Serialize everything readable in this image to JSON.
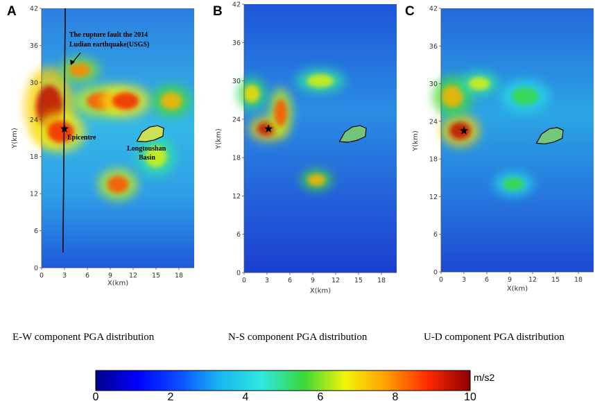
{
  "panels": [
    {
      "letter": "A",
      "caption": "E-W component PGA distribution",
      "ylabel": "Y(km)",
      "xlabel": "X(km)"
    },
    {
      "letter": "B",
      "caption": "N-S component PGA distribution",
      "ylabel": "Y(km)",
      "xlabel": "X(km)"
    },
    {
      "letter": "C",
      "caption": "U-D component PGA distribution",
      "ylabel": "Y(km)",
      "xlabel": "X(km)"
    }
  ],
  "annotations": {
    "fault_line1": "The rupture fault the 2014",
    "fault_line2": "Ludian earthquake(USGS)",
    "epicentre": "Epicentre",
    "basin_line1": "Longtoushan",
    "basin_line2": "Basin"
  },
  "colorbar": {
    "unit": "m/s2",
    "ticks": [
      "0",
      "2",
      "4",
      "6",
      "8",
      "10"
    ],
    "colors": [
      "#00008b",
      "#0000ff",
      "#0a4dff",
      "#19b8f0",
      "#2fe8e0",
      "#3ad83a",
      "#f4f40a",
      "#ff9d00",
      "#ff2800",
      "#8b0000"
    ]
  },
  "chart_data": [
    {
      "type": "heatmap",
      "title": "E-W component PGA distribution",
      "xlabel": "X(km)",
      "ylabel": "Y(km)",
      "xlim": [
        0,
        20
      ],
      "ylim": [
        0,
        42
      ],
      "xticks": [
        0,
        3,
        6,
        9,
        12,
        15,
        18
      ],
      "yticks": [
        0,
        6,
        12,
        18,
        24,
        30,
        36,
        42
      ],
      "value_range": [
        0,
        10
      ],
      "unit": "m/s2",
      "epicentre": {
        "x": 3,
        "y": 22.5
      },
      "fault_trace": [
        [
          2.8,
          2.5
        ],
        [
          3.1,
          42
        ]
      ],
      "basin_outline": [
        [
          12.5,
          20.5
        ],
        [
          13.2,
          22
        ],
        [
          14.2,
          22.8
        ],
        [
          15.2,
          23
        ],
        [
          16,
          22.6
        ],
        [
          15.9,
          21.3
        ],
        [
          14.8,
          20.7
        ],
        [
          13.6,
          20.4
        ]
      ],
      "hotspots": [
        {
          "x": 1,
          "y": 26,
          "value": 9.5,
          "rx": 2.5,
          "ry": 5
        },
        {
          "x": 2.5,
          "y": 22,
          "value": 9,
          "rx": 2.5,
          "ry": 2.5
        },
        {
          "x": 8,
          "y": 27,
          "value": 8.5,
          "rx": 3,
          "ry": 2
        },
        {
          "x": 11,
          "y": 27,
          "value": 9,
          "rx": 2.5,
          "ry": 2
        },
        {
          "x": 5,
          "y": 32,
          "value": 8,
          "rx": 2,
          "ry": 1.6
        },
        {
          "x": 10,
          "y": 13.5,
          "value": 8.5,
          "rx": 2,
          "ry": 2
        },
        {
          "x": 17,
          "y": 27,
          "value": 7.5,
          "rx": 2,
          "ry": 2
        },
        {
          "x": 15,
          "y": 18,
          "value": 6.5,
          "rx": 2,
          "ry": 2.5
        }
      ]
    },
    {
      "type": "heatmap",
      "title": "N-S component PGA distribution",
      "xlabel": "X(km)",
      "ylabel": "Y(km)",
      "xlim": [
        0,
        20
      ],
      "ylim": [
        0,
        42
      ],
      "xticks": [
        0,
        3,
        6,
        9,
        12,
        15,
        18
      ],
      "yticks": [
        0,
        6,
        12,
        18,
        24,
        30,
        36,
        42
      ],
      "value_range": [
        0,
        10
      ],
      "unit": "m/s2",
      "epicentre": {
        "x": 3.2,
        "y": 22.5
      },
      "basin_outline": [
        [
          12.5,
          20.5
        ],
        [
          13.2,
          22
        ],
        [
          14.2,
          22.8
        ],
        [
          15.2,
          23
        ],
        [
          16,
          22.6
        ],
        [
          15.9,
          21.3
        ],
        [
          14.8,
          20.7
        ],
        [
          13.6,
          20.4
        ]
      ],
      "hotspots": [
        {
          "x": 3,
          "y": 22.5,
          "value": 9.5,
          "rx": 1.8,
          "ry": 1.5
        },
        {
          "x": 4.8,
          "y": 25,
          "value": 8.5,
          "rx": 1.2,
          "ry": 3
        },
        {
          "x": 1,
          "y": 28,
          "value": 7,
          "rx": 1.5,
          "ry": 2
        },
        {
          "x": 9.5,
          "y": 14.5,
          "value": 7.5,
          "rx": 1.6,
          "ry": 1.3
        },
        {
          "x": 10,
          "y": 30,
          "value": 6.5,
          "rx": 2.5,
          "ry": 1.5
        }
      ]
    },
    {
      "type": "heatmap",
      "title": "U-D component PGA distribution",
      "xlabel": "X(km)",
      "ylabel": "Y(km)",
      "xlim": [
        0,
        20
      ],
      "ylim": [
        0,
        42
      ],
      "xticks": [
        0,
        3,
        6,
        9,
        12,
        15,
        18
      ],
      "yticks": [
        0,
        6,
        12,
        18,
        24,
        30,
        36,
        42
      ],
      "value_range": [
        0,
        10
      ],
      "unit": "m/s2",
      "epicentre": {
        "x": 3,
        "y": 22.5
      },
      "basin_outline": [
        [
          12.5,
          20.5
        ],
        [
          13.2,
          22
        ],
        [
          14.2,
          22.8
        ],
        [
          15.2,
          23
        ],
        [
          16,
          22.6
        ],
        [
          15.9,
          21.3
        ],
        [
          14.8,
          20.7
        ],
        [
          13.6,
          20.4
        ]
      ],
      "hotspots": [
        {
          "x": 2.5,
          "y": 22.5,
          "value": 9.5,
          "rx": 2,
          "ry": 2
        },
        {
          "x": 1.5,
          "y": 28,
          "value": 7.5,
          "rx": 2,
          "ry": 2.5
        },
        {
          "x": 5,
          "y": 30,
          "value": 6.5,
          "rx": 2,
          "ry": 1.5
        },
        {
          "x": 11,
          "y": 28,
          "value": 5.5,
          "rx": 2.5,
          "ry": 2
        },
        {
          "x": 9.5,
          "y": 14,
          "value": 5.5,
          "rx": 2,
          "ry": 1.5
        }
      ]
    }
  ]
}
